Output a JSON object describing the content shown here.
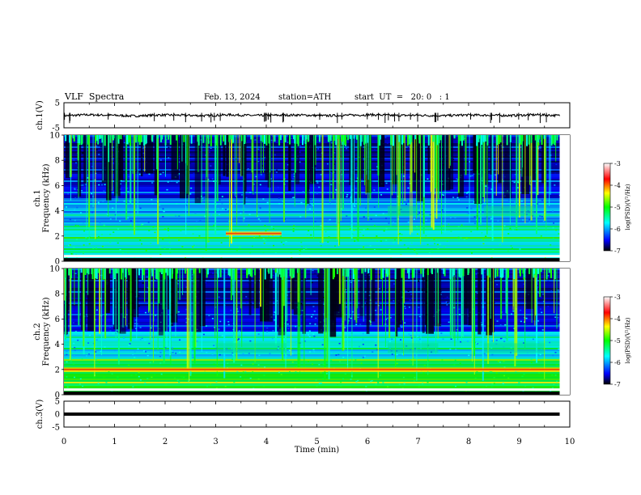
{
  "header": {
    "title": "VLF  Spectra",
    "date": "Feb. 13, 2024",
    "station": "station=ATH",
    "start": "start  UT  =   20: 0   : 1"
  },
  "chart_data": [
    {
      "type": "line",
      "panel": "ch1-waveform",
      "ylabel": "ch.1(V)",
      "ylim": [
        -5,
        5
      ],
      "ytick_labels": [
        "5",
        "-5"
      ],
      "series": [
        {
          "values": [
            -0.2,
            0.2,
            0.0,
            -0.3,
            0.1,
            0.0,
            -0.2,
            0.2,
            -0.1,
            0.0,
            0.1,
            -0.2,
            0.0,
            0.2,
            -0.1,
            0.0,
            -0.2,
            0.1,
            0.0,
            -0.1,
            0.2,
            -0.1
          ]
        }
      ]
    },
    {
      "type": "heatmap",
      "panel": "ch1-spectrogram",
      "ylabel": "ch.1\nFrequency (kHz)",
      "ylim": [
        0,
        10
      ],
      "yticks": [
        0,
        2,
        4,
        6,
        8,
        10
      ],
      "colorbar": {
        "label": "log(PSD)(V²/Hz)",
        "range": [
          -7,
          -3
        ],
        "ticks": [
          "-3",
          "-4",
          "-5",
          "-6",
          "-7"
        ]
      },
      "features": [
        {
          "name": "strong band",
          "freq_khz": 2.2,
          "time_min": [
            3.2,
            4.3
          ]
        },
        {
          "name": "enhanced emission",
          "freq_khz": 4.0,
          "time_min": [
            6.4,
            7.0
          ]
        },
        {
          "name": "enhanced emission",
          "freq_khz": 4.0,
          "time_min": [
            8.3,
            9.3
          ]
        }
      ]
    },
    {
      "type": "heatmap",
      "panel": "ch2-spectrogram",
      "ylabel": "ch.2\nFrequency (kHz)",
      "ylim": [
        0,
        10
      ],
      "yticks": [
        0,
        2,
        4,
        6,
        8,
        10
      ],
      "colorbar": {
        "label": "log(PSD)(V²/Hz)",
        "range": [
          -7,
          -3
        ],
        "ticks": [
          "-3",
          "-4",
          "-5",
          "-6",
          "-7"
        ]
      },
      "features": [
        {
          "name": "strong band",
          "freq_khz": 2.0,
          "time_min": [
            0.0,
            9.8
          ]
        },
        {
          "name": "enhanced emission",
          "freq_khz": 3.7,
          "time_min": [
            3.0,
            4.4
          ]
        },
        {
          "name": "enhanced emission",
          "freq_khz": 3.7,
          "time_min": [
            6.4,
            7.4
          ]
        },
        {
          "name": "enhanced emission",
          "freq_khz": 3.7,
          "time_min": [
            8.3,
            9.5
          ]
        }
      ]
    },
    {
      "type": "line",
      "panel": "ch3-waveform",
      "ylabel": "ch.3(V)",
      "ylim": [
        -5,
        5
      ],
      "ytick_labels": [
        "5",
        "0",
        "-5"
      ],
      "series": [
        {
          "values": [
            0.0,
            0.0
          ]
        }
      ]
    }
  ],
  "xaxis": {
    "label": "Time  (min)",
    "ticks": [
      "0",
      "1",
      "2",
      "3",
      "4",
      "5",
      "6",
      "7",
      "8",
      "9",
      "10"
    ],
    "range_min": [
      0,
      10
    ],
    "data_end_min": 9.8
  },
  "colors": {
    "axis": "#000000",
    "colormap": [
      "#000000",
      "#0000ff",
      "#00ffff",
      "#00ff00",
      "#ffff00",
      "#ff0000",
      "#ffffff"
    ]
  }
}
